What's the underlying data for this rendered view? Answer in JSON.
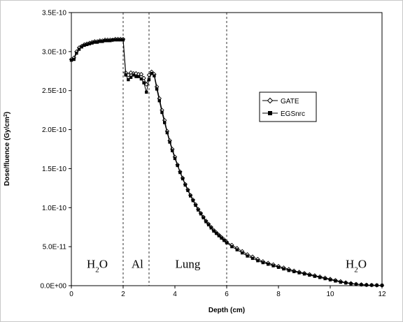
{
  "chart_data": {
    "type": "line",
    "xlabel": "Depth (cm)",
    "ylabel_main": "Dose/fluence (Gy/cm",
    "ylabel_sup": "2",
    "ylabel_close": ")",
    "xlim": [
      0,
      12
    ],
    "ylim": [
      0,
      3.5e-10
    ],
    "xticks": [
      0,
      2,
      4,
      6,
      8,
      10,
      12
    ],
    "xtick_labels": [
      "0",
      "2",
      "4",
      "6",
      "8",
      "10",
      "12"
    ],
    "yticks": [
      0,
      5e-11,
      1e-10,
      1.5e-10,
      2e-10,
      2.5e-10,
      3e-10,
      3.5e-10
    ],
    "ytick_labels": [
      "0.0E+00",
      "5.0E-11",
      "1.0E-10",
      "1.5E-10",
      "2.0E-10",
      "2.5E-10",
      "3.0E-10",
      "3.5E-10"
    ],
    "grid": false,
    "legend_position": "right",
    "boundaries": [
      2,
      3,
      6
    ],
    "regions": [
      {
        "main": "H",
        "sub": "2",
        "tail": "O",
        "x": 1.0,
        "y": 2.3e-11
      },
      {
        "main": "Al",
        "sub": "",
        "tail": "",
        "x": 2.55,
        "y": 2.3e-11
      },
      {
        "main": "Lung",
        "sub": "",
        "tail": "",
        "x": 4.5,
        "y": 2.3e-11
      },
      {
        "main": "H",
        "sub": "2",
        "tail": "O",
        "x": 11.0,
        "y": 2.3e-11
      }
    ],
    "series": [
      {
        "name": "GATE",
        "marker": "diamond",
        "color": "#000000",
        "x": [
          0.0,
          0.1,
          0.2,
          0.3,
          0.4,
          0.5,
          0.6,
          0.7,
          0.8,
          0.9,
          1.0,
          1.1,
          1.2,
          1.3,
          1.4,
          1.5,
          1.6,
          1.7,
          1.8,
          1.9,
          2.0,
          2.1,
          2.2,
          2.3,
          2.4,
          2.5,
          2.6,
          2.7,
          2.8,
          2.9,
          3.0,
          3.1,
          3.2,
          3.3,
          3.4,
          3.5,
          3.6,
          3.7,
          3.8,
          3.9,
          4.0,
          4.1,
          4.2,
          4.3,
          4.4,
          4.5,
          4.6,
          4.7,
          4.8,
          4.9,
          5.0,
          5.1,
          5.2,
          5.3,
          5.4,
          5.5,
          5.6,
          5.7,
          5.8,
          5.9,
          6.0,
          6.2,
          6.4,
          6.6,
          6.8,
          7.0,
          7.2,
          7.4,
          7.6,
          7.8,
          8.0,
          8.2,
          8.4,
          8.6,
          8.8,
          9.0,
          9.2,
          9.4,
          9.6,
          9.8,
          10.0,
          10.2,
          10.4,
          10.6,
          10.8,
          11.0,
          11.2,
          11.4,
          11.6,
          11.8,
          12.0
        ],
        "y": [
          2.9e-10,
          2.92e-10,
          3e-10,
          3.05e-10,
          3.07e-10,
          3.09e-10,
          3.1e-10,
          3.11e-10,
          3.12e-10,
          3.13e-10,
          3.13e-10,
          3.14e-10,
          3.14e-10,
          3.15e-10,
          3.15e-10,
          3.15e-10,
          3.15e-10,
          3.16e-10,
          3.16e-10,
          3.16e-10,
          3.16e-10,
          2.73e-10,
          2.7e-10,
          2.73e-10,
          2.72e-10,
          2.72e-10,
          2.71e-10,
          2.71e-10,
          2.66e-10,
          2.58e-10,
          2.7e-10,
          2.74e-10,
          2.71e-10,
          2.55e-10,
          2.4e-10,
          2.25e-10,
          2.12e-10,
          1.98e-10,
          1.86e-10,
          1.75e-10,
          1.65e-10,
          1.55e-10,
          1.46e-10,
          1.38e-10,
          1.3e-10,
          1.23e-10,
          1.16e-10,
          1.1e-10,
          1.04e-10,
          9.8e-11,
          9.3e-11,
          8.8e-11,
          8.3e-11,
          7.9e-11,
          7.5e-11,
          7.1e-11,
          6.8e-11,
          6.5e-11,
          6.2e-11,
          5.9e-11,
          5.6e-11,
          5.2e-11,
          4.8e-11,
          4.4e-11,
          4e-11,
          3.7e-11,
          3.4e-11,
          3.1e-11,
          2.9e-11,
          2.7e-11,
          2.5e-11,
          2.3e-11,
          2.1e-11,
          1.9e-11,
          1.75e-11,
          1.6e-11,
          1.45e-11,
          1.3e-11,
          1.15e-11,
          1e-11,
          8.5e-12,
          7e-12,
          5.5e-12,
          4e-12,
          3e-12,
          2e-12,
          1.5e-12,
          1e-12,
          8e-13,
          6e-13,
          5e-13
        ]
      },
      {
        "name": "EGSnrc",
        "marker": "square",
        "color": "#000000",
        "x": [
          0.0,
          0.1,
          0.2,
          0.3,
          0.4,
          0.5,
          0.6,
          0.7,
          0.8,
          0.9,
          1.0,
          1.1,
          1.2,
          1.3,
          1.4,
          1.5,
          1.6,
          1.7,
          1.8,
          1.9,
          2.0,
          2.1,
          2.2,
          2.3,
          2.4,
          2.5,
          2.6,
          2.7,
          2.8,
          2.9,
          3.0,
          3.1,
          3.2,
          3.3,
          3.4,
          3.5,
          3.6,
          3.7,
          3.8,
          3.9,
          4.0,
          4.1,
          4.2,
          4.3,
          4.4,
          4.5,
          4.6,
          4.7,
          4.8,
          4.9,
          5.0,
          5.1,
          5.2,
          5.3,
          5.4,
          5.5,
          5.6,
          5.7,
          5.8,
          5.9,
          6.0,
          6.2,
          6.4,
          6.6,
          6.8,
          7.0,
          7.2,
          7.4,
          7.6,
          7.8,
          8.0,
          8.2,
          8.4,
          8.6,
          8.8,
          9.0,
          9.2,
          9.4,
          9.6,
          9.8,
          10.0,
          10.2,
          10.4,
          10.6,
          10.8,
          11.0,
          11.2,
          11.4,
          11.6,
          11.8,
          12.0
        ],
        "y": [
          2.89e-10,
          2.9e-10,
          2.98e-10,
          3.03e-10,
          3.06e-10,
          3.08e-10,
          3.09e-10,
          3.1e-10,
          3.11e-10,
          3.12e-10,
          3.12e-10,
          3.13e-10,
          3.13e-10,
          3.14e-10,
          3.14e-10,
          3.14e-10,
          3.15e-10,
          3.15e-10,
          3.15e-10,
          3.15e-10,
          3.15e-10,
          2.7e-10,
          2.64e-10,
          2.67e-10,
          2.7e-10,
          2.68e-10,
          2.68e-10,
          2.65e-10,
          2.6e-10,
          2.48e-10,
          2.64e-10,
          2.72e-10,
          2.69e-10,
          2.52e-10,
          2.37e-10,
          2.22e-10,
          2.09e-10,
          1.96e-10,
          1.84e-10,
          1.73e-10,
          1.63e-10,
          1.54e-10,
          1.45e-10,
          1.37e-10,
          1.29e-10,
          1.22e-10,
          1.15e-10,
          1.09e-10,
          1.03e-10,
          9.7e-11,
          9.2e-11,
          8.7e-11,
          8.2e-11,
          7.8e-11,
          7.4e-11,
          7e-11,
          6.7e-11,
          6.4e-11,
          6.1e-11,
          5.8e-11,
          5.5e-11,
          5e-11,
          4.6e-11,
          4.2e-11,
          3.8e-11,
          3.5e-11,
          3.2e-11,
          2.95e-11,
          2.75e-11,
          2.55e-11,
          2.35e-11,
          2.15e-11,
          1.95e-11,
          1.8e-11,
          1.65e-11,
          1.5e-11,
          1.35e-11,
          1.2e-11,
          1.05e-11,
          9e-12,
          7.5e-12,
          6e-12,
          4.5e-12,
          3.5e-12,
          2.5e-12,
          1.8e-12,
          1.2e-12,
          9e-13,
          7e-13,
          5e-13,
          4e-13
        ]
      }
    ]
  }
}
